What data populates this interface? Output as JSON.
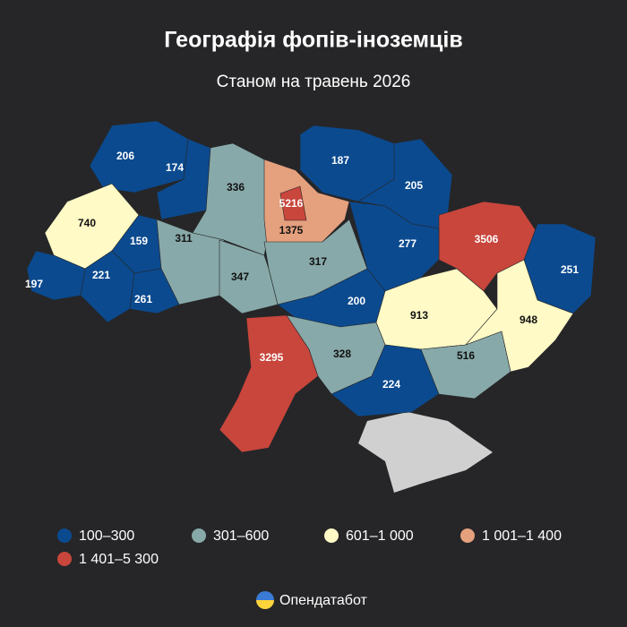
{
  "header": {
    "title": "Географія фопів-іноземців",
    "subtitle": "Станом на травень 2026"
  },
  "regions": [
    {
      "value": 206,
      "color": "#0b4a8f"
    },
    {
      "value": 174,
      "color": "#0b4a8f"
    },
    {
      "value": 336,
      "color": "#88a9a9"
    },
    {
      "value": 1375,
      "color": "#e5a07e"
    },
    {
      "value": 5216,
      "color": "#c8463c"
    },
    {
      "value": 187,
      "color": "#0b4a8f"
    },
    {
      "value": 205,
      "color": "#0b4a8f"
    },
    {
      "value": 3506,
      "color": "#c8463c"
    },
    {
      "value": 251,
      "color": "#0b4a8f"
    },
    {
      "value": 740,
      "color": "#fffac6"
    },
    {
      "value": 159,
      "color": "#0b4a8f"
    },
    {
      "value": 311,
      "color": "#88a9a9"
    },
    {
      "value": 347,
      "color": "#88a9a9"
    },
    {
      "value": 317,
      "color": "#88a9a9"
    },
    {
      "value": 277,
      "color": "#0b4a8f"
    },
    {
      "value": 197,
      "color": "#0b4a8f"
    },
    {
      "value": 221,
      "color": "#0b4a8f"
    },
    {
      "value": 261,
      "color": "#0b4a8f"
    },
    {
      "value": 200,
      "color": "#0b4a8f"
    },
    {
      "value": 913,
      "color": "#fffac6"
    },
    {
      "value": 948,
      "color": "#fffac6"
    },
    {
      "value": 3295,
      "color": "#c8463c"
    },
    {
      "value": 328,
      "color": "#88a9a9"
    },
    {
      "value": 224,
      "color": "#0b4a8f"
    },
    {
      "value": 516,
      "color": "#88a9a9"
    }
  ],
  "legend": [
    {
      "label": "100–300",
      "color": "#0b4a8f"
    },
    {
      "label": "301–600",
      "color": "#88a9a9"
    },
    {
      "label": "601–1 000",
      "color": "#fffac6"
    },
    {
      "label": "1 001–1 400",
      "color": "#e5a07e"
    },
    {
      "label": "1 401–5 300",
      "color": "#c8463c"
    }
  ],
  "footer": {
    "brand": "Опендатабот"
  }
}
